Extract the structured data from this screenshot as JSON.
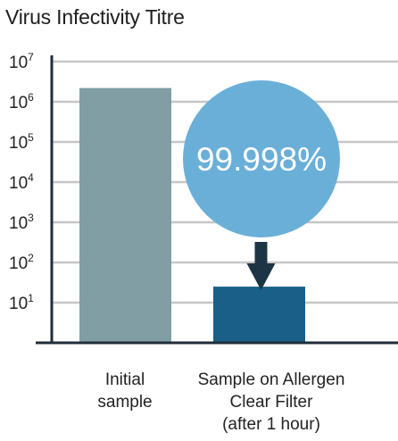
{
  "title": "Virus Infectivity Titre",
  "chart_data": {
    "type": "bar",
    "title": "Virus Infectivity Titre",
    "scale": "log10",
    "ylim_exponent": [
      0,
      7
    ],
    "y_ticks": [
      {
        "base": "10",
        "exp": "7"
      },
      {
        "base": "10",
        "exp": "6"
      },
      {
        "base": "10",
        "exp": "5"
      },
      {
        "base": "10",
        "exp": "4"
      },
      {
        "base": "10",
        "exp": "3"
      },
      {
        "base": "10",
        "exp": "2"
      },
      {
        "base": "10",
        "exp": "1"
      }
    ],
    "categories": [
      "Initial\nsample",
      "Sample on Allergen\nClear Filter\n(after 1 hour)"
    ],
    "values": [
      2200000,
      25
    ],
    "grid": true,
    "annotation": {
      "text": "99.998%",
      "target_category_index": 1
    },
    "colors": {
      "bar1": "#809ea3",
      "bar2": "#1a5f87",
      "bubble": "#6aafd7",
      "arrow": "#1c3545",
      "grid": "#c6c6c6",
      "axis": "#1f2e3a"
    }
  }
}
